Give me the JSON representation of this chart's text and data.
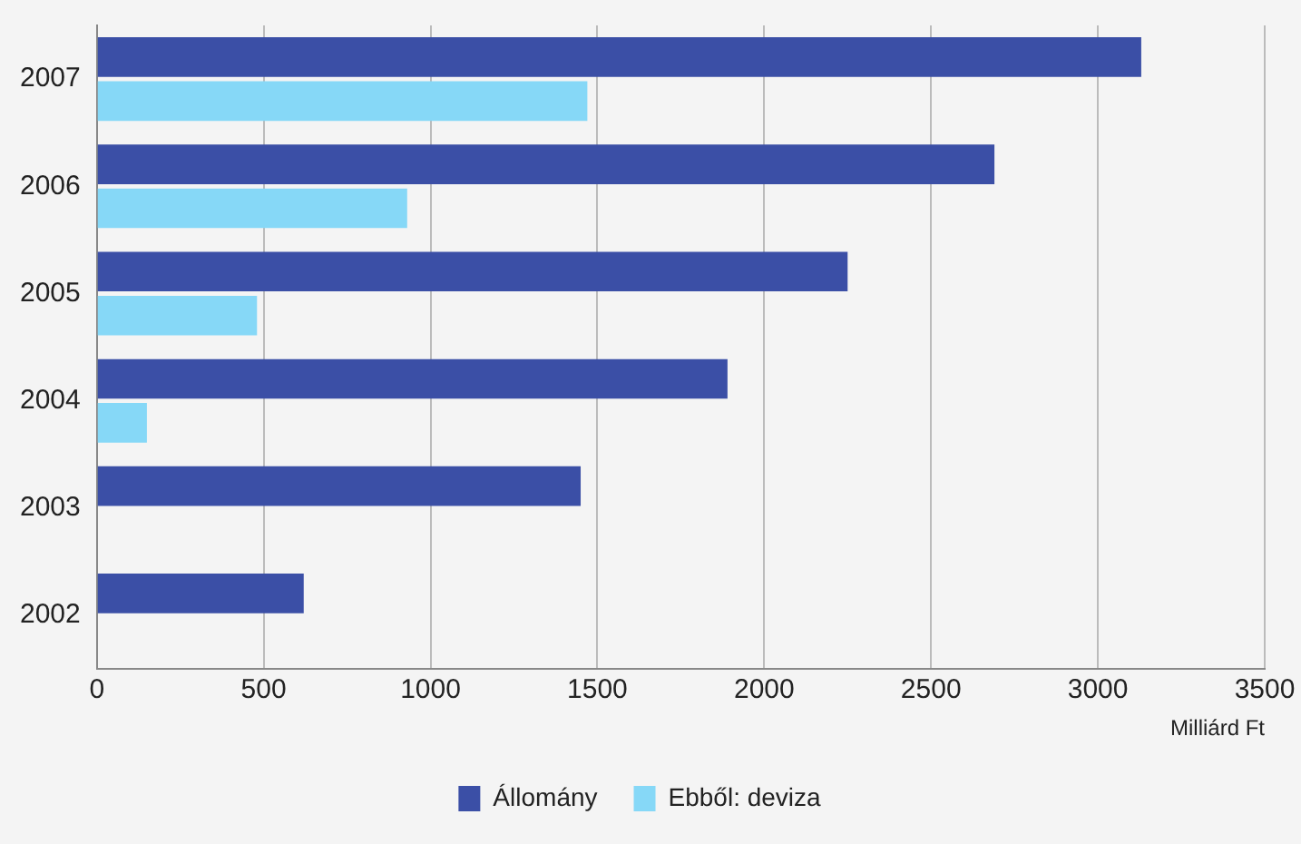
{
  "chart_data": {
    "type": "bar",
    "orientation": "horizontal",
    "categories": [
      "2007",
      "2006",
      "2005",
      "2004",
      "2003",
      "2002"
    ],
    "series": [
      {
        "name": "Állomány",
        "color": "#3b4fa6",
        "values": [
          3130,
          2690,
          2250,
          1890,
          1450,
          620
        ]
      },
      {
        "name": "Ebből: deviza",
        "color": "#86d8f7",
        "values": [
          1470,
          930,
          480,
          150,
          null,
          null
        ]
      }
    ],
    "xlabel": "Milliárd Ft",
    "xlim": [
      0,
      3500
    ],
    "xticks": [
      0,
      500,
      1000,
      1500,
      2000,
      2500,
      3000,
      3500
    ],
    "grid": "x",
    "legend": "bottom"
  }
}
